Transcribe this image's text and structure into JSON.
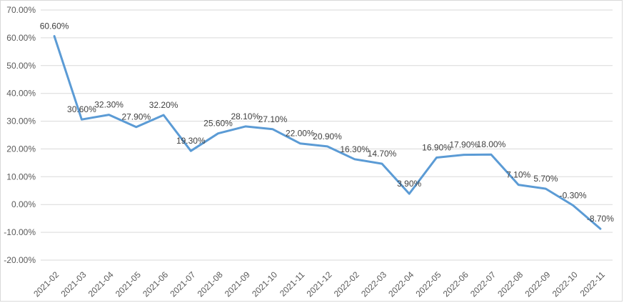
{
  "chart_data": {
    "type": "line",
    "title": "",
    "categories": [
      "2021-02",
      "2021-03",
      "2021-04",
      "2021-05",
      "2021-06",
      "2021-07",
      "2021-08",
      "2021-09",
      "2021-10",
      "2021-11",
      "2021-12",
      "2022-02",
      "2022-03",
      "2022-04",
      "2022-05",
      "2022-06",
      "2022-07",
      "2022-08",
      "2022-09",
      "2022-10",
      "2022-11"
    ],
    "values": [
      60.6,
      30.6,
      32.3,
      27.9,
      32.2,
      19.3,
      25.6,
      28.1,
      27.1,
      22.0,
      20.9,
      16.3,
      14.7,
      3.9,
      16.9,
      17.9,
      18.0,
      7.1,
      5.7,
      -0.3,
      -8.7
    ],
    "point_labels": [
      "60.60%",
      "30.60%",
      "32.30%",
      "27.90%",
      "32.20%",
      "19.30%",
      "25.60%",
      "28.10%",
      "27.10%",
      "22.00%",
      "20.90%",
      "16.30%",
      "14.70%",
      "3.90%",
      "16.90%",
      "17.90%",
      "18.00%",
      "7.10%",
      "5.70%",
      "-0.30%",
      "-8.70%"
    ],
    "y_tick_labels": [
      "70.00%",
      "60.00%",
      "50.00%",
      "40.00%",
      "30.00%",
      "20.00%",
      "10.00%",
      "0.00%",
      "-10.00%",
      "-20.00%"
    ],
    "ylim": [
      -20,
      70
    ],
    "ytick_step": 10,
    "grid": true,
    "legend_position": "none",
    "line_color": "#5b9bd5",
    "gridline_color": "#d9d9d9",
    "axis_text_color": "#595959",
    "label_text_color": "#404040",
    "border_color": "#d9d9d9",
    "background": "#ffffff"
  }
}
